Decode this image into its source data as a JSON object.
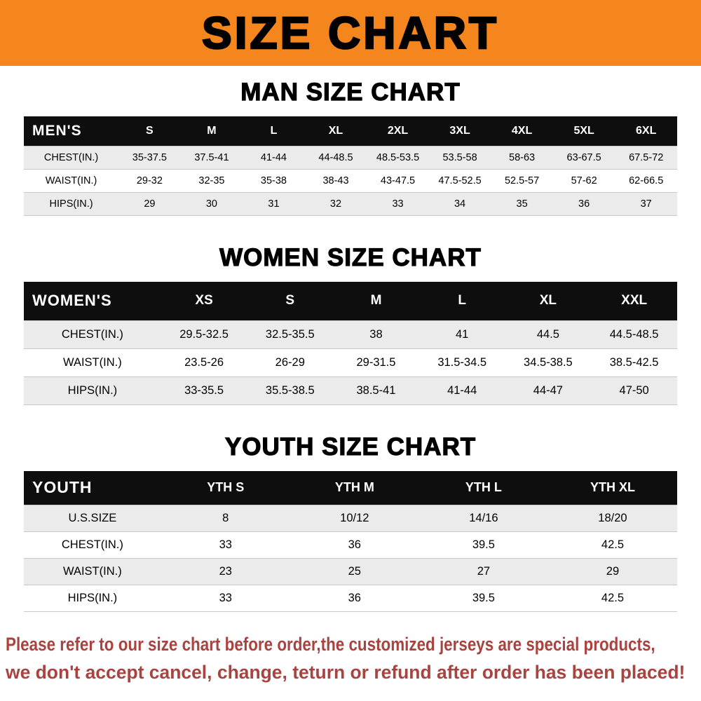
{
  "banner": {
    "title": "SIZE CHART"
  },
  "colors": {
    "banner_bg": "#F5861D",
    "table_header_bg": "#0E0E0E",
    "row_stripe": "#EBEBEB",
    "footer_text": "#A8433F"
  },
  "men": {
    "heading": "MAN SIZE CHART",
    "table": {
      "header": [
        "MEN'S",
        "S",
        "M",
        "L",
        "XL",
        "2XL",
        "3XL",
        "4XL",
        "5XL",
        "6XL"
      ],
      "rows": [
        [
          "CHEST(IN.)",
          "35-37.5",
          "37.5-41",
          "41-44",
          "44-48.5",
          "48.5-53.5",
          "53.5-58",
          "58-63",
          "63-67.5",
          "67.5-72"
        ],
        [
          "WAIST(IN.)",
          "29-32",
          "32-35",
          "35-38",
          "38-43",
          "43-47.5",
          "47.5-52.5",
          "52.5-57",
          "57-62",
          "62-66.5"
        ],
        [
          "HIPS(IN.)",
          "29",
          "30",
          "31",
          "32",
          "33",
          "34",
          "35",
          "36",
          "37"
        ]
      ]
    }
  },
  "women": {
    "heading": "WOMEN SIZE CHART",
    "table": {
      "header": [
        "WOMEN'S",
        "XS",
        "S",
        "M",
        "L",
        "XL",
        "XXL"
      ],
      "rows": [
        [
          "CHEST(IN.)",
          "29.5-32.5",
          "32.5-35.5",
          "38",
          "41",
          "44.5",
          "44.5-48.5"
        ],
        [
          "WAIST(IN.)",
          "23.5-26",
          "26-29",
          "29-31.5",
          "31.5-34.5",
          "34.5-38.5",
          "38.5-42.5"
        ],
        [
          "HIPS(IN.)",
          "33-35.5",
          "35.5-38.5",
          "38.5-41",
          "41-44",
          "44-47",
          "47-50"
        ]
      ]
    }
  },
  "youth": {
    "heading": "YOUTH SIZE CHART",
    "table": {
      "header": [
        "YOUTH",
        "YTH S",
        "YTH M",
        "YTH L",
        "YTH XL"
      ],
      "rows": [
        [
          "U.S.SIZE",
          "8",
          "10/12",
          "14/16",
          "18/20"
        ],
        [
          "CHEST(IN.)",
          "33",
          "36",
          "39.5",
          "42.5"
        ],
        [
          "WAIST(IN.)",
          "23",
          "25",
          "27",
          "29"
        ],
        [
          "HIPS(IN.)",
          "33",
          "36",
          "39.5",
          "42.5"
        ]
      ]
    }
  },
  "footer": {
    "line1": "Please refer to our size chart before order,the customized jerseys are special products,",
    "line2": "we don't accept cancel, change, teturn or refund after order has been placed!"
  }
}
